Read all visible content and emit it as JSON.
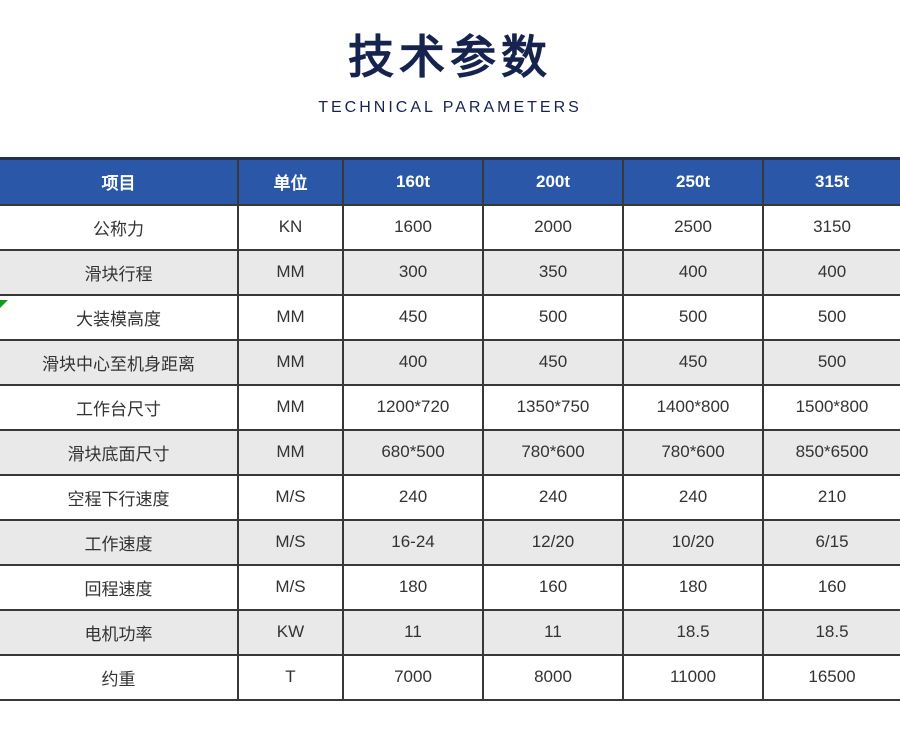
{
  "header": {
    "title": "技术参数",
    "subtitle": "TECHNICAL PARAMETERS"
  },
  "table": {
    "columns": [
      "项目",
      "单位",
      "160t",
      "200t",
      "250t",
      "315t"
    ],
    "rows": [
      [
        "公称力",
        "KN",
        "1600",
        "2000",
        "2500",
        "3150"
      ],
      [
        "滑块行程",
        "MM",
        "300",
        "350",
        "400",
        "400"
      ],
      [
        "大装模高度",
        "MM",
        "450",
        "500",
        "500",
        "500"
      ],
      [
        "滑块中心至机身距离",
        "MM",
        "400",
        "450",
        "450",
        "500"
      ],
      [
        "工作台尺寸",
        "MM",
        "1200*720",
        "1350*750",
        "1400*800",
        "1500*800"
      ],
      [
        "滑块底面尺寸",
        "MM",
        "680*500",
        "780*600",
        "780*600",
        "850*6500"
      ],
      [
        "空程下行速度",
        "M/S",
        "240",
        "240",
        "240",
        "210"
      ],
      [
        "工作速度",
        "M/S",
        "16-24",
        "12/20",
        "10/20",
        "6/15"
      ],
      [
        "回程速度",
        "M/S",
        "180",
        "160",
        "180",
        "160"
      ],
      [
        "电机功率",
        "KW",
        "11",
        "11",
        "18.5",
        "18.5"
      ],
      [
        "约重",
        "T",
        "7000",
        "8000",
        "11000",
        "16500"
      ]
    ]
  },
  "colors": {
    "header_bg": "#2b57a8",
    "header_text": "#ffffff",
    "alt_row_bg": "#e9e9e9",
    "border": "#383838",
    "title": "#17234f",
    "cell_text": "#333333",
    "marker_green": "#169c16"
  }
}
